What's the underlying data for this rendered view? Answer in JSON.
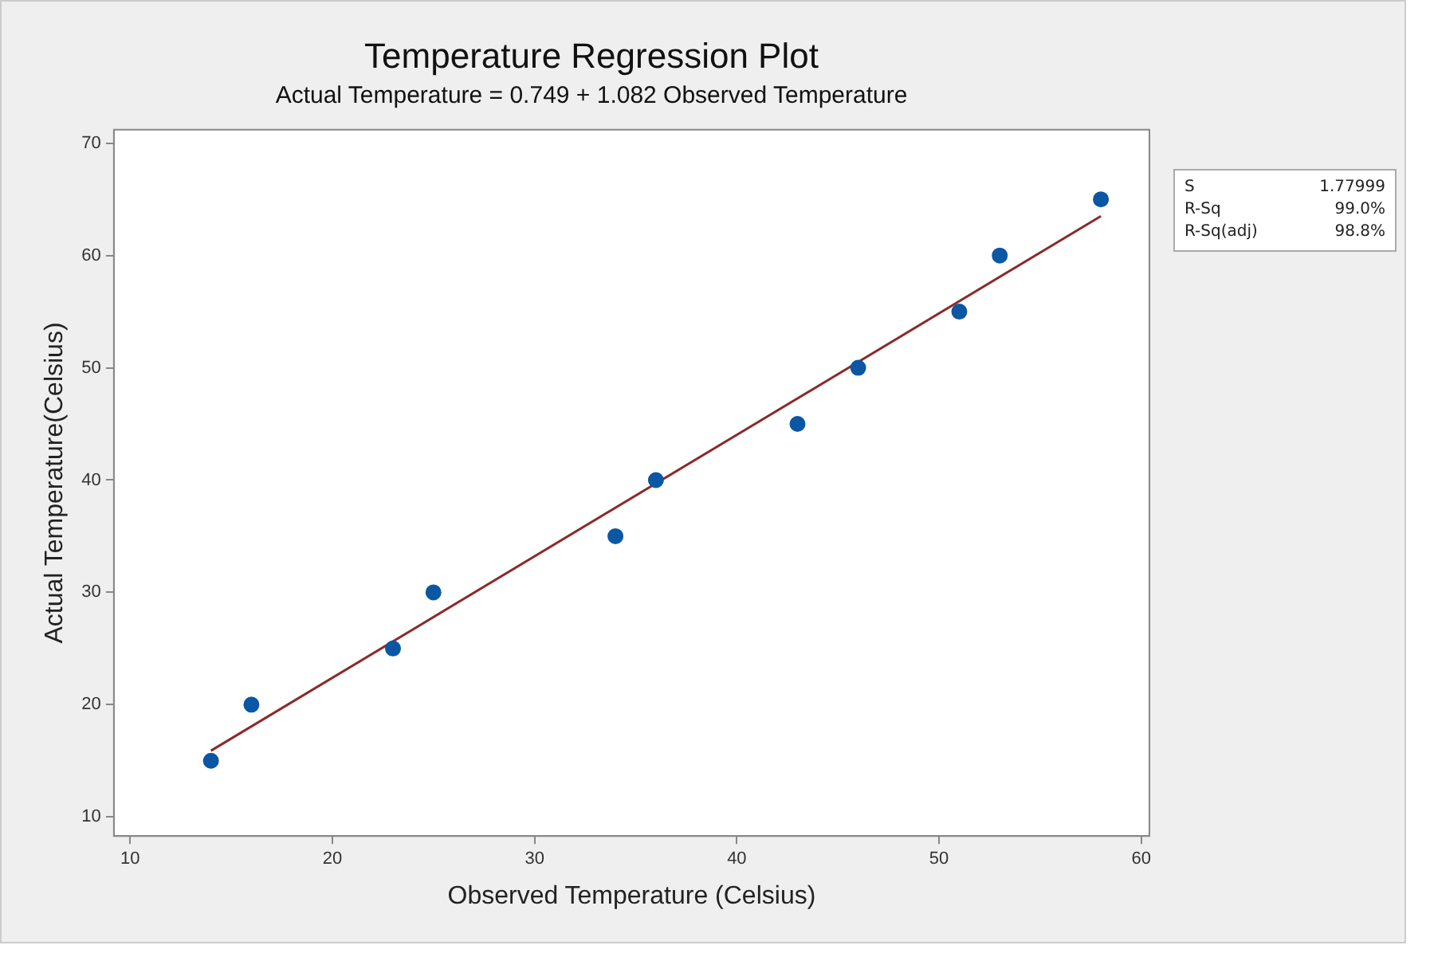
{
  "chart_data": {
    "type": "scatter",
    "title": "Temperature Regression Plot",
    "subtitle": "Actual Temperature = 0.749 + 1.082 Observed Temperature",
    "xlabel": "Observed Temperature (Celsius)",
    "ylabel": "Actual Temperature(Celsius)",
    "annotations": [
      "S 1.77999",
      "R-Sq 99.0%",
      "R-Sq(adj) 98.8%"
    ],
    "xlim": [
      9.2,
      60.4
    ],
    "xticks": [
      10,
      20,
      30,
      40,
      50,
      60
    ],
    "ylim": [
      8.3,
      71.2
    ],
    "yticks": [
      10,
      20,
      30,
      40,
      50,
      60,
      70
    ],
    "legend": false,
    "series": [
      {
        "marker": "circle",
        "color": "#0b57a4",
        "x": [
          14,
          16,
          23,
          25,
          34,
          36,
          43,
          46,
          51,
          53,
          58
        ],
        "values": [
          15,
          20,
          25,
          30,
          35,
          40,
          45,
          50,
          55,
          60,
          65
        ]
      },
      {
        "type": "line",
        "marker": "none",
        "color": "#8b2a2a",
        "x": [
          14,
          58
        ],
        "values": [
          15.9,
          63.5
        ]
      }
    ]
  }
}
